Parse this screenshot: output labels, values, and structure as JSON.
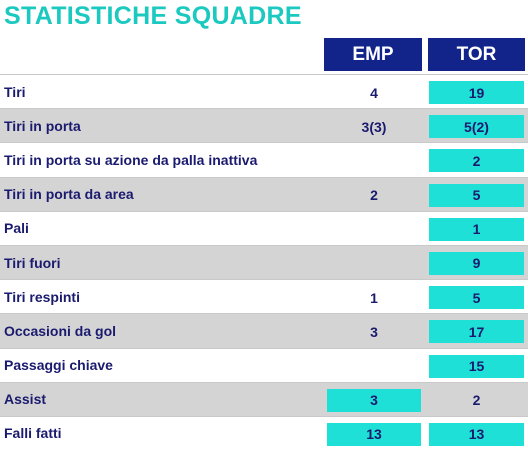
{
  "title": "STATISTICHE SQUADRE",
  "teams": {
    "home": "EMP",
    "away": "TOR"
  },
  "colors": {
    "title": "#1bc9c0",
    "header_bg": "#12238a",
    "highlight": "#1fe0d6",
    "text": "#1a1a6e",
    "row_shade": "#d4d4d4"
  },
  "rows": [
    {
      "label": "Tiri",
      "emp": "4",
      "tor": "19"
    },
    {
      "label": "Tiri in porta",
      "emp": "3(3)",
      "tor": "5(2)"
    },
    {
      "label": "Tiri in porta su azione da palla inattiva",
      "emp": "",
      "tor": "2"
    },
    {
      "label": "Tiri in porta da area",
      "emp": "2",
      "tor": "5"
    },
    {
      "label": "Pali",
      "emp": "",
      "tor": "1"
    },
    {
      "label": "Tiri fuori",
      "emp": "",
      "tor": "9"
    },
    {
      "label": "Tiri respinti",
      "emp": "1",
      "tor": "5"
    },
    {
      "label": "Occasioni da gol",
      "emp": "3",
      "tor": "17"
    },
    {
      "label": "Passaggi chiave",
      "emp": "",
      "tor": "15"
    },
    {
      "label": "Assist",
      "emp": "3",
      "tor": "2"
    },
    {
      "label": "Falli fatti",
      "emp": "13",
      "tor": "13"
    }
  ]
}
